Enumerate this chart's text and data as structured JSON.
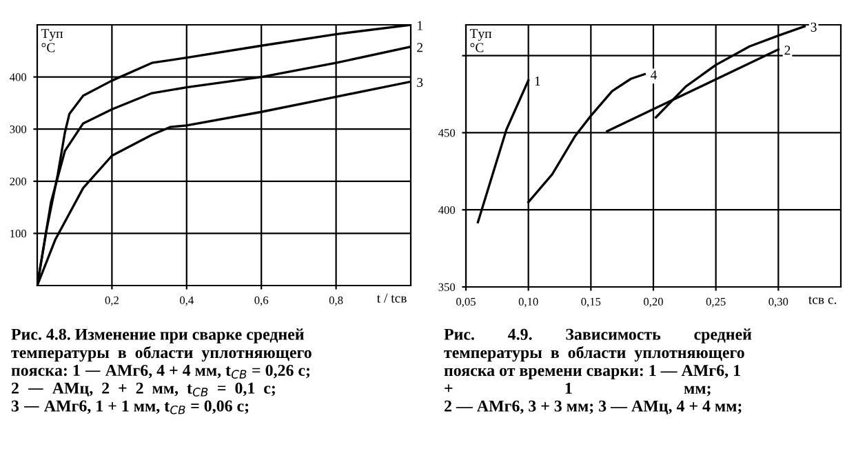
{
  "chart_data": [
    {
      "type": "line",
      "xlabel": "t / tсв",
      "ylabel": "Tуп\n°C",
      "xlim": [
        0,
        1.0
      ],
      "ylim": [
        0,
        500
      ],
      "xticks": [
        {
          "value": 0.2,
          "label": "0,2"
        },
        {
          "value": 0.4,
          "label": "0,4"
        },
        {
          "value": 0.6,
          "label": "0,6"
        },
        {
          "value": 0.8,
          "label": "0,8"
        }
      ],
      "yticks": [
        100,
        200,
        300,
        400
      ],
      "grid": true,
      "color": "#000000",
      "series": [
        {
          "name": "1",
          "x": [
            0,
            0.025,
            0.055,
            0.074,
            0.086,
            0.123,
            0.2,
            0.307,
            0.4,
            0.6,
            0.8,
            1.0
          ],
          "values": [
            0,
            107,
            213,
            293,
            329,
            364,
            393,
            427,
            437,
            460,
            482,
            500
          ]
        },
        {
          "name": "2",
          "x": [
            0,
            0.037,
            0.074,
            0.123,
            0.2,
            0.307,
            0.4,
            0.6,
            0.8,
            1.0
          ],
          "values": [
            0,
            160,
            258,
            311,
            338,
            369,
            380,
            400,
            427,
            458
          ]
        },
        {
          "name": "3",
          "x": [
            0,
            0.049,
            0.123,
            0.2,
            0.307,
            0.356,
            0.4,
            0.6,
            0.8,
            1.0
          ],
          "values": [
            0,
            89,
            187,
            249,
            289,
            304,
            307,
            333,
            362,
            391
          ]
        }
      ],
      "annotations": [
        "Рис. 4.8. Изменение при сварке средней\nтемпературы  в  области  уплотняющего\nпояска: 1 — АМг6, 4 + 4 мм, t$_{СВ}$ = 0,26 с;\n2  —  АМц,  2  +  2  мм,  t$_{СВ}$  =  0,1  с;\n3 — АМг6, 1 + 1 мм, t$_{СВ}$ = 0,06 с;"
      ]
    },
    {
      "type": "line",
      "xlabel": "tсв с.",
      "ylabel": "Tуп\n°C",
      "xlim": [
        0.05,
        0.35
      ],
      "ylim": [
        350,
        520
      ],
      "xticks": [
        {
          "value": 0.05,
          "label": "0,05"
        },
        {
          "value": 0.1,
          "label": "0,10"
        },
        {
          "value": 0.15,
          "label": "0,15"
        },
        {
          "value": 0.2,
          "label": "0,20"
        },
        {
          "value": 0.25,
          "label": "0,25"
        },
        {
          "value": 0.3,
          "label": "0,30"
        }
      ],
      "yticks": [
        350,
        400,
        450,
        {
          "value": 500,
          "label": null
        }
      ],
      "grid": true,
      "color": "#000000",
      "series": [
        {
          "name": "1",
          "x": [
            0.0596,
            0.0824,
            0.1
          ],
          "values": [
            392,
            452,
            484
          ]
        },
        {
          "name": "4",
          "x": [
            0.1,
            0.119,
            0.1375,
            0.15,
            0.167,
            0.182,
            0.193
          ],
          "values": [
            405,
            423,
            448,
            461,
            477,
            485,
            488
          ]
        },
        {
          "name": "2",
          "x": [
            0.163,
            0.3
          ],
          "values": [
            451,
            504
          ]
        },
        {
          "name": "3",
          "x": [
            0.202,
            0.226,
            0.25,
            0.277,
            0.3,
            0.321
          ],
          "values": [
            460,
            480,
            494,
            506,
            513,
            519
          ]
        }
      ],
      "annotations": [
        "Рис.        4.9.        Зависимость        средней\nтемпературы  в  области  уплотняющего\nпояска от времени сварки: 1 — АМг6, 1\n+                           1                           мм;\n2 — АМг6, 3 + 3 мм; 3 — АМц, 4 + 4 мм;"
      ]
    }
  ]
}
